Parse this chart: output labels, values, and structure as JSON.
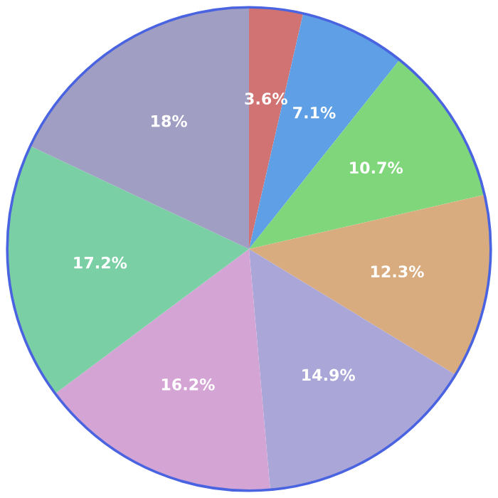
{
  "chart_data": {
    "type": "pie",
    "categories": [
      null,
      null,
      null,
      null,
      null,
      null,
      null,
      null
    ],
    "values": [
      3.6,
      7.1,
      10.7,
      12.3,
      14.9,
      16.2,
      17.2,
      18
    ],
    "value_labels": [
      "3.6%",
      "7.1%",
      "10.7%",
      "12.3%",
      "14.9%",
      "16.2%",
      "17.2%",
      "18%"
    ],
    "colors": [
      "#d27373",
      "#5f9fe6",
      "#7fd67b",
      "#d9ac80",
      "#aaa7d8",
      "#d4a5d4",
      "#7acfa5",
      "#a09ec2"
    ]
  }
}
